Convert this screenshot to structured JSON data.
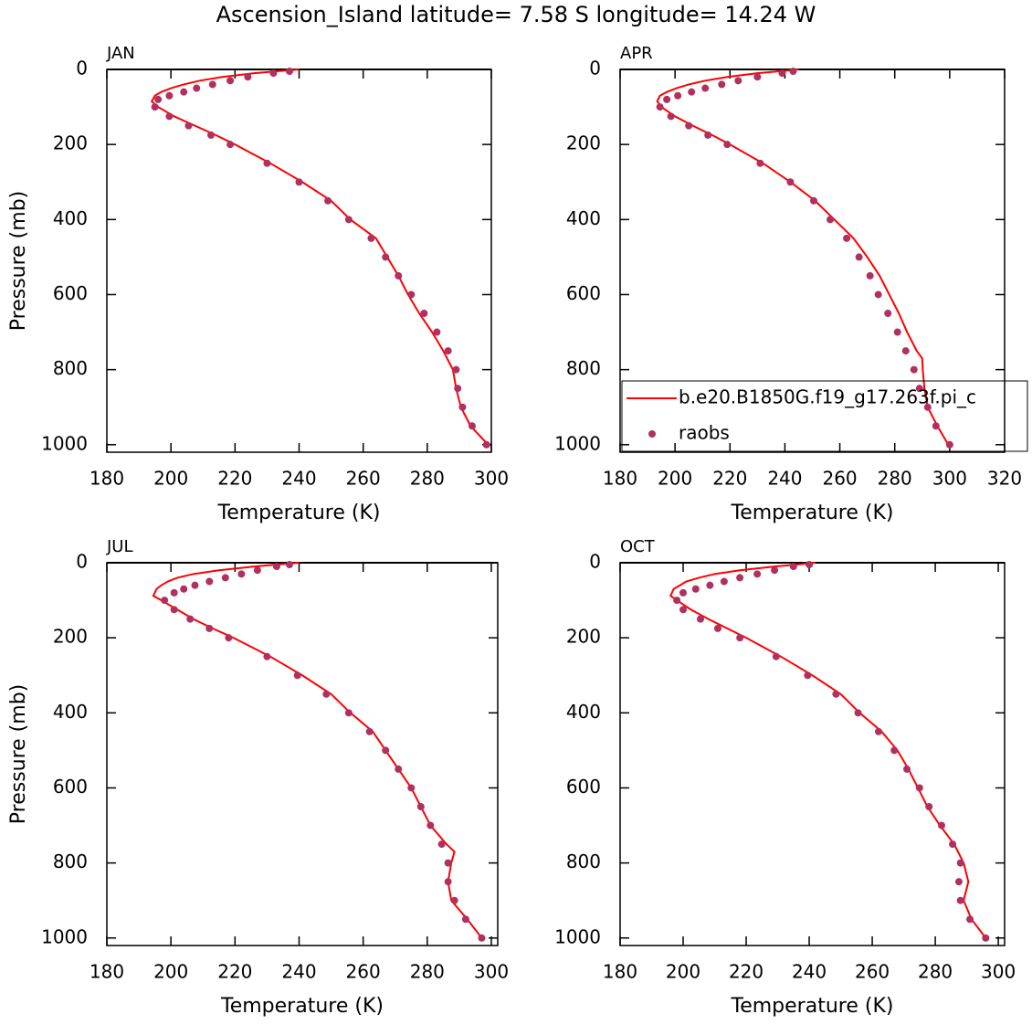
{
  "title": "Ascension_Island  latitude= 7.58 S longitude= 14.24 W",
  "chart_data": [
    {
      "type": "scatter-line",
      "title": "JAN",
      "xlabel": "Temperature (K)",
      "ylabel": "Pressure (mb)",
      "xlim": [
        180,
        300
      ],
      "ylim": [
        0,
        1020
      ],
      "y_reversed": true,
      "xticks": [
        180,
        200,
        220,
        240,
        260,
        280,
        300
      ],
      "yticks": [
        0,
        200,
        400,
        600,
        800,
        1000
      ],
      "series": [
        {
          "color": "#ff0000",
          "kind": "line",
          "x": [
            240,
            233,
            226,
            216,
            209,
            204,
            200,
            197,
            195,
            194,
            196,
            201,
            207.5,
            214,
            220,
            231,
            241,
            250,
            256,
            264,
            267.5,
            271,
            274,
            277.5,
            281.5,
            285,
            288,
            289,
            290.5,
            293.5,
            299
          ],
          "values": [
            0,
            5,
            10,
            20,
            30,
            40,
            50,
            60,
            70,
            85,
            100,
            125,
            150,
            175,
            200,
            250,
            300,
            350,
            400,
            450,
            500,
            550,
            600,
            650,
            700,
            750,
            800,
            850,
            900,
            950,
            1000
          ]
        },
        {
          "color": "#b03060",
          "kind": "marker",
          "x": [
            237,
            232,
            224,
            218.5,
            213,
            208,
            204,
            199.5,
            196,
            195,
            199.5,
            205.5,
            212.5,
            218.5,
            230,
            240,
            249,
            255.5,
            262.5,
            267,
            271,
            275,
            279,
            283,
            286.5,
            289,
            289.5,
            291,
            294,
            298.5
          ],
          "values": [
            5,
            10,
            20,
            30,
            40,
            50,
            60,
            70,
            80,
            100,
            125,
            150,
            175,
            200,
            250,
            300,
            350,
            400,
            450,
            500,
            550,
            600,
            650,
            700,
            750,
            800,
            850,
            900,
            950,
            1000
          ]
        }
      ]
    },
    {
      "type": "scatter-line",
      "title": "APR",
      "xlabel": "Temperature (K)",
      "xlim": [
        180,
        320
      ],
      "ylim": [
        0,
        1020
      ],
      "y_reversed": true,
      "xticks": [
        180,
        200,
        220,
        240,
        260,
        280,
        300,
        320
      ],
      "yticks": [
        0,
        200,
        400,
        600,
        800,
        1000
      ],
      "legend": "lower-right",
      "series": [
        {
          "name": "b.e20.B1850G.f19_g17.263f.pi_c",
          "color": "#ff0000",
          "kind": "line",
          "x": [
            245,
            238,
            230,
            219,
            211,
            205,
            200.5,
            197,
            194.5,
            193.5,
            195,
            200,
            206.5,
            213.5,
            220,
            232,
            242,
            251,
            258,
            265,
            270,
            274.5,
            278,
            281.5,
            284.5,
            288,
            290,
            290.2,
            290.8,
            292,
            295.5,
            299.5
          ],
          "values": [
            0,
            5,
            10,
            20,
            30,
            40,
            50,
            60,
            70,
            85,
            100,
            125,
            150,
            175,
            200,
            250,
            300,
            350,
            400,
            450,
            500,
            550,
            600,
            650,
            700,
            750,
            770,
            800,
            850,
            900,
            950,
            1000
          ]
        },
        {
          "name": "raobs",
          "color": "#b03060",
          "kind": "marker",
          "x": [
            243,
            239,
            230,
            223,
            217,
            211,
            206,
            201,
            197,
            194.5,
            198.5,
            205,
            212,
            219,
            231,
            242,
            250.5,
            256.5,
            262.5,
            267,
            271,
            274,
            277.5,
            281,
            284,
            287,
            289,
            292,
            295,
            300
          ],
          "values": [
            5,
            10,
            20,
            30,
            40,
            50,
            60,
            70,
            80,
            100,
            125,
            150,
            175,
            200,
            250,
            300,
            350,
            400,
            450,
            500,
            550,
            600,
            650,
            700,
            750,
            800,
            850,
            900,
            950,
            1000
          ]
        }
      ]
    },
    {
      "type": "scatter-line",
      "title": "JUL",
      "xlabel": "Temperature (K)",
      "ylabel": "Pressure (mb)",
      "xlim": [
        180,
        302
      ],
      "ylim": [
        0,
        1020
      ],
      "y_reversed": true,
      "xticks": [
        180,
        200,
        220,
        240,
        260,
        280,
        300
      ],
      "yticks": [
        0,
        200,
        400,
        600,
        800,
        1000
      ],
      "series": [
        {
          "color": "#ff0000",
          "kind": "line",
          "x": [
            240,
            233,
            226,
            215,
            207,
            202,
            199,
            197,
            195.5,
            194.5,
            197,
            202,
            207,
            213,
            219.5,
            231,
            241,
            250,
            256,
            263,
            267,
            271,
            275,
            278,
            281,
            286,
            288.5,
            287.5,
            286.5,
            287.5,
            292.5,
            297
          ],
          "values": [
            0,
            5,
            10,
            20,
            30,
            40,
            50,
            60,
            70,
            88,
            100,
            125,
            150,
            175,
            200,
            250,
            300,
            350,
            400,
            450,
            500,
            550,
            600,
            650,
            700,
            750,
            770,
            800,
            850,
            900,
            950,
            1000
          ]
        },
        {
          "color": "#b03060",
          "kind": "marker",
          "x": [
            237,
            233,
            227,
            222,
            217,
            212,
            207.5,
            204,
            201,
            198,
            201,
            206,
            212,
            218,
            230,
            239.5,
            248.5,
            255.5,
            262,
            267,
            271,
            275,
            278,
            281,
            284.5,
            286.5,
            286.5,
            288.5,
            292,
            297
          ],
          "values": [
            5,
            10,
            20,
            30,
            40,
            50,
            60,
            70,
            80,
            100,
            125,
            150,
            175,
            200,
            250,
            300,
            350,
            400,
            450,
            500,
            550,
            600,
            650,
            700,
            750,
            800,
            850,
            900,
            950,
            1000
          ]
        }
      ]
    },
    {
      "type": "scatter-line",
      "title": "OCT",
      "xlabel": "Temperature (K)",
      "xlim": [
        180,
        302
      ],
      "ylim": [
        0,
        1020
      ],
      "y_reversed": true,
      "xticks": [
        180,
        200,
        220,
        240,
        260,
        280,
        300
      ],
      "yticks": [
        0,
        200,
        400,
        600,
        800,
        1000
      ],
      "series": [
        {
          "color": "#ff0000",
          "kind": "line",
          "x": [
            242,
            236,
            229,
            218,
            210,
            205,
            201,
            199,
            197,
            196,
            198,
            202.5,
            208,
            214,
            220,
            231,
            241,
            250,
            256,
            263,
            268,
            271.5,
            274.5,
            277.5,
            281.5,
            286,
            289,
            290.5,
            289,
            291.5,
            296
          ],
          "values": [
            0,
            5,
            10,
            20,
            30,
            40,
            50,
            60,
            70,
            88,
            100,
            125,
            150,
            175,
            200,
            250,
            300,
            350,
            400,
            450,
            500,
            550,
            600,
            650,
            700,
            750,
            800,
            850,
            900,
            950,
            1000
          ]
        },
        {
          "color": "#b03060",
          "kind": "marker",
          "x": [
            240,
            235,
            229,
            223.5,
            218,
            213,
            208.5,
            204,
            200,
            198,
            200,
            205.5,
            211,
            218,
            229.5,
            239.5,
            248.5,
            255.5,
            262,
            267,
            271,
            275,
            278,
            282,
            285.5,
            288,
            287.5,
            288,
            291,
            296
          ],
          "values": [
            5,
            10,
            20,
            30,
            40,
            50,
            60,
            70,
            80,
            100,
            125,
            150,
            175,
            200,
            250,
            300,
            350,
            400,
            450,
            500,
            550,
            600,
            650,
            700,
            750,
            800,
            850,
            900,
            950,
            1000
          ]
        }
      ]
    }
  ]
}
